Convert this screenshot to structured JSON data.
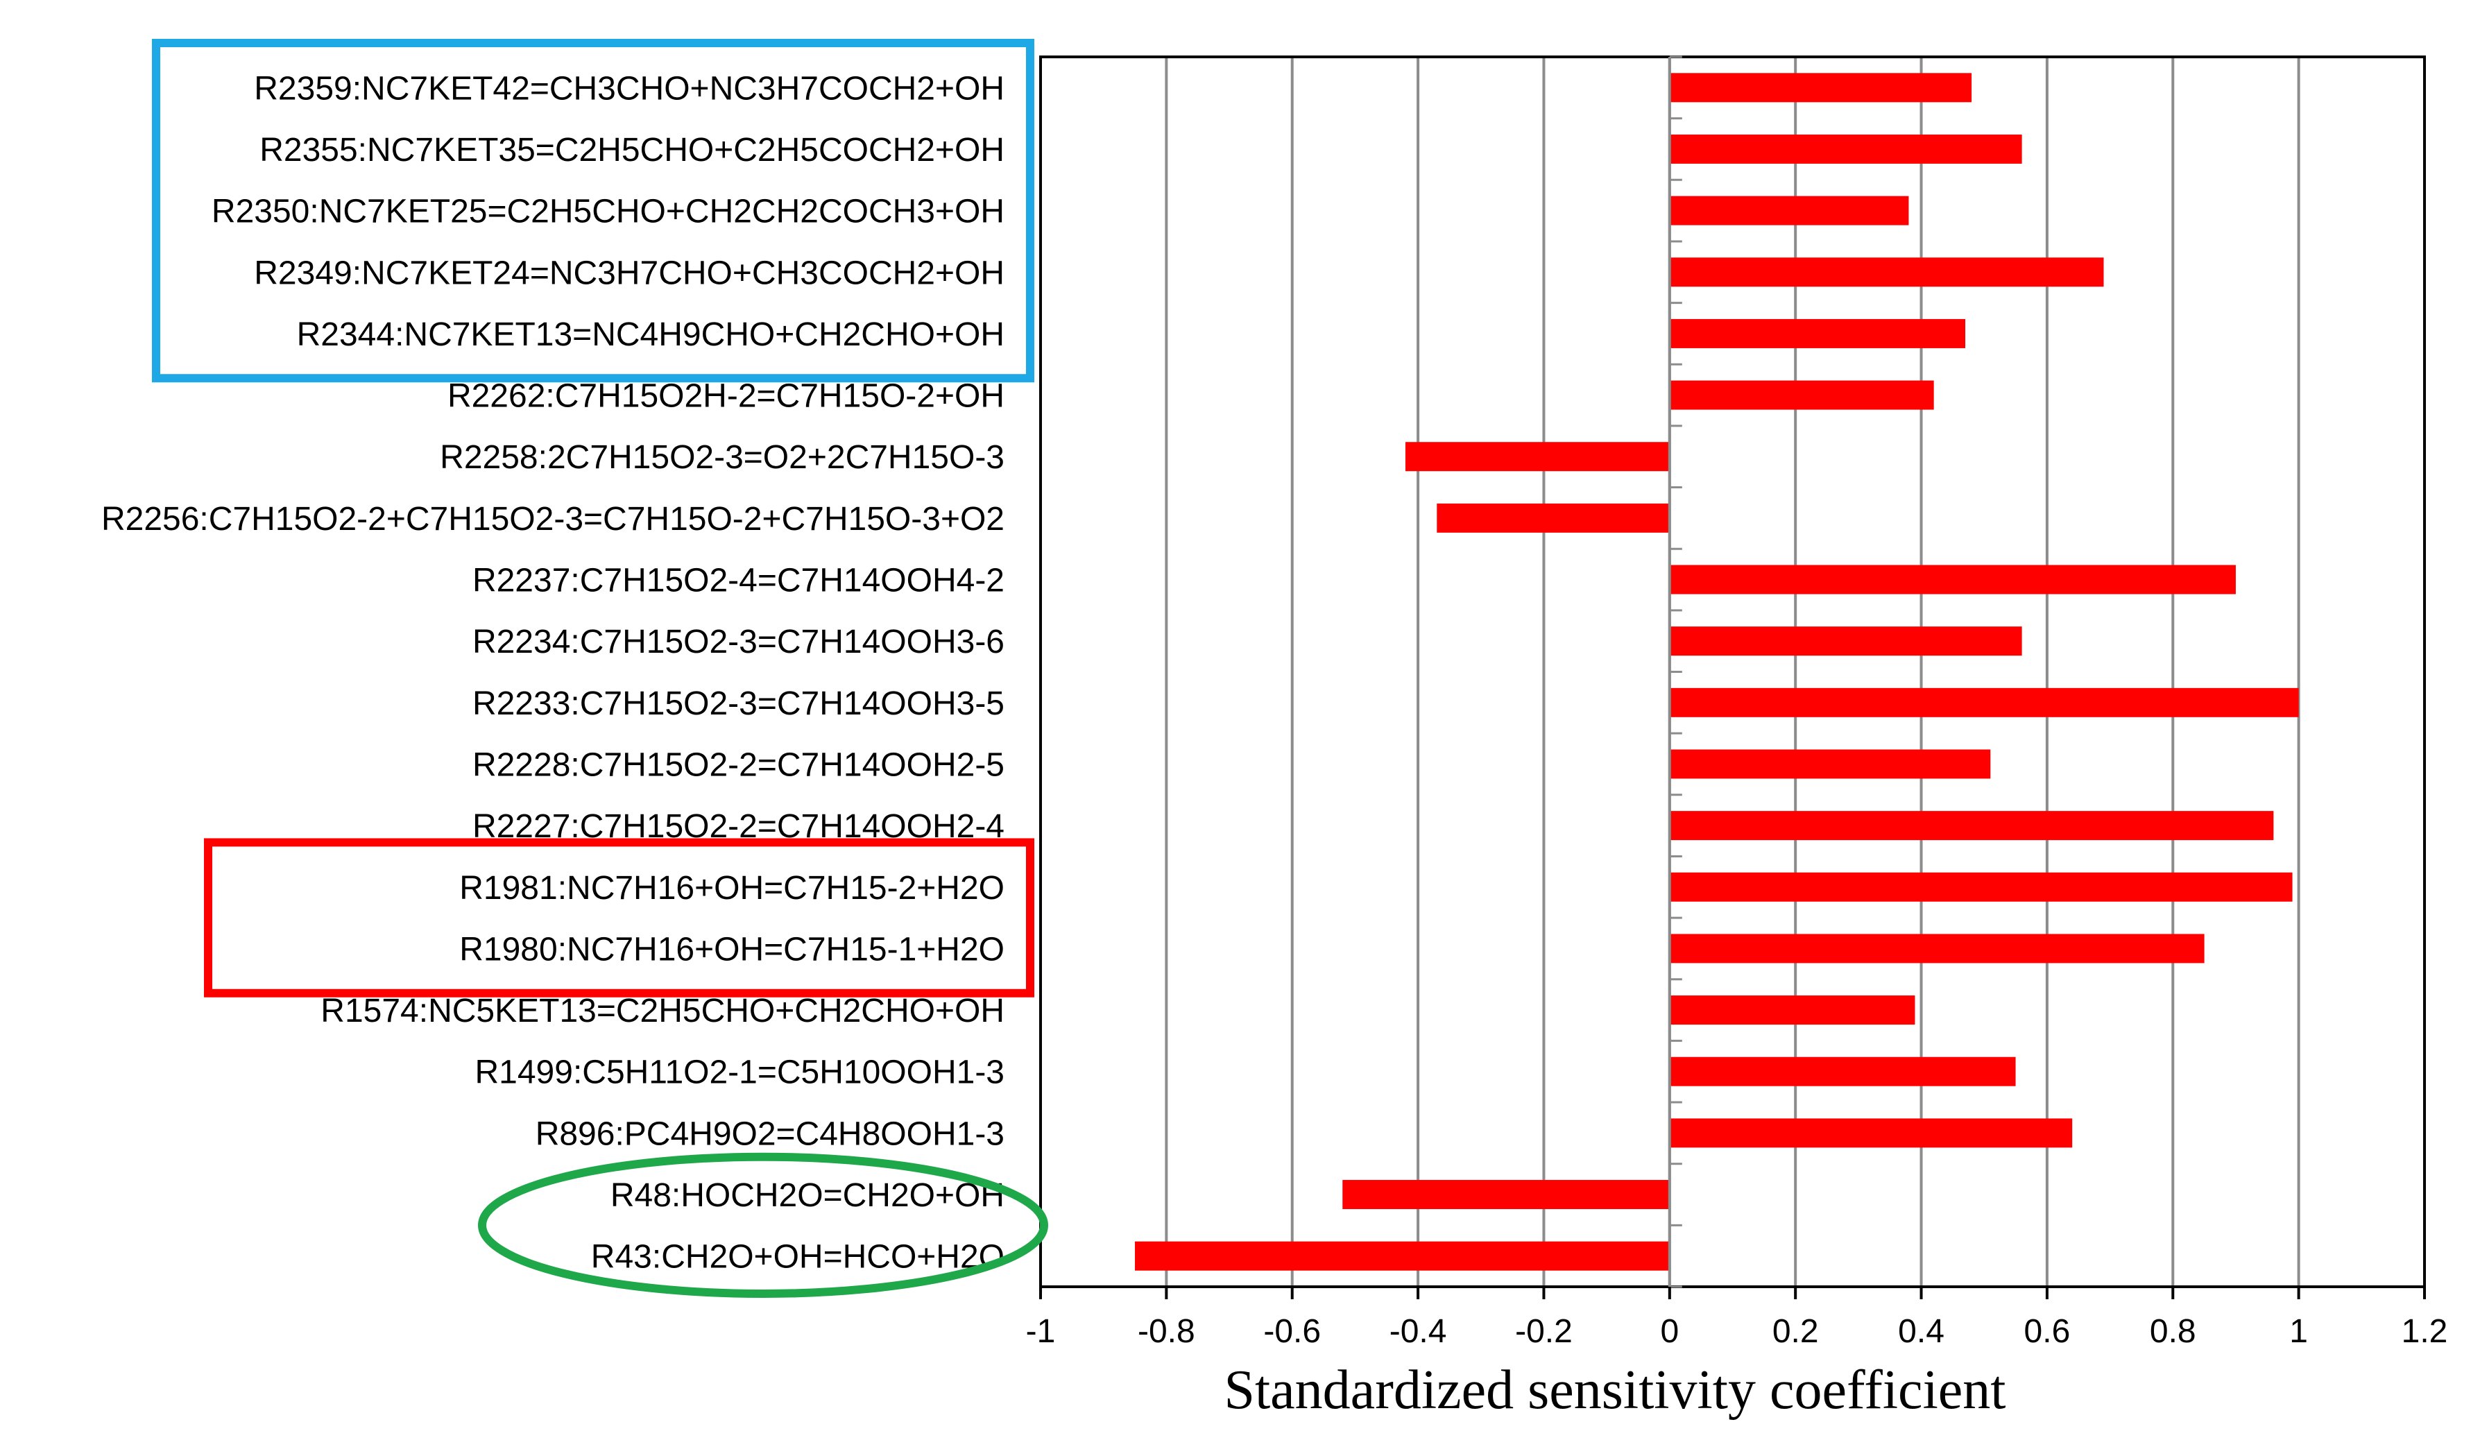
{
  "chart_data": {
    "type": "bar",
    "orientation": "horizontal",
    "categories": [
      "R2359:NC7KET42=CH3CHO+NC3H7COCH2+OH",
      "R2355:NC7KET35=C2H5CHO+C2H5COCH2+OH",
      "R2350:NC7KET25=C2H5CHO+CH2CH2COCH3+OH",
      "R2349:NC7KET24=NC3H7CHO+CH3COCH2+OH",
      "R2344:NC7KET13=NC4H9CHO+CH2CHO+OH",
      "R2262:C7H15O2H-2=C7H15O-2+OH",
      "R2258:2C7H15O2-3=O2+2C7H15O-3",
      "R2256:C7H15O2-2+C7H15O2-3=C7H15O-2+C7H15O-3+O2",
      "R2237:C7H15O2-4=C7H14OOH4-2",
      "R2234:C7H15O2-3=C7H14OOH3-6",
      "R2233:C7H15O2-3=C7H14OOH3-5",
      "R2228:C7H15O2-2=C7H14OOH2-5",
      "R2227:C7H15O2-2=C7H14OOH2-4",
      "R1981:NC7H16+OH=C7H15-2+H2O",
      "R1980:NC7H16+OH=C7H15-1+H2O",
      "R1574:NC5KET13=C2H5CHO+CH2CHO+OH",
      "R1499:C5H11O2-1=C5H10OOH1-3",
      "R896:PC4H9O2=C4H8OOH1-3",
      "R48:HOCH2O=CH2O+OH",
      "R43:CH2O+OH=HCO+H2O"
    ],
    "values": [
      0.48,
      0.56,
      0.38,
      0.69,
      0.47,
      0.42,
      -0.42,
      -0.37,
      0.9,
      0.56,
      1.0,
      0.51,
      0.96,
      0.99,
      0.85,
      0.39,
      0.55,
      0.64,
      -0.52,
      -0.85
    ],
    "xlabel": "Standardized sensitivity  coefficient",
    "xlim": [
      -1,
      1.2
    ],
    "xticks": [
      "-1",
      "-0.8",
      "-0.6",
      "-0.4",
      "-0.2",
      "0",
      "0.2",
      "0.4",
      "0.6",
      "0.8",
      "1",
      "1.2"
    ],
    "grid": "vertical",
    "bar_color": "#ff0000",
    "highlights": [
      {
        "shape": "rectangle",
        "color": "#1ea9e6",
        "rows": [
          0,
          4
        ]
      },
      {
        "shape": "rectangle",
        "color": "#ff0000",
        "rows": [
          13,
          14
        ]
      },
      {
        "shape": "ellipse",
        "color": "#1fa84a",
        "rows": [
          18,
          19
        ]
      }
    ]
  }
}
